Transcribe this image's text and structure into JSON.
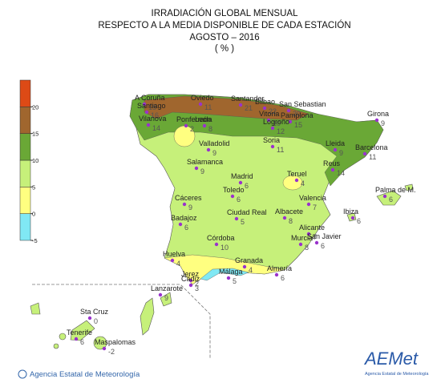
{
  "title": [
    "IRRADIACIÓN GLOBAL MENSUAL",
    "RESPECTO A LA MEDIA DISPONIBLE DE CADA ESTACIÓN",
    "AGOSTO – 2016",
    "( % )"
  ],
  "legend": {
    "lim": [
      -5,
      25
    ],
    "ticks": [
      -5,
      0,
      5,
      10,
      15,
      20
    ],
    "colors": [
      "#80e8f4",
      "#ffff80",
      "#c6f07a",
      "#6aa836",
      "#a0662e",
      "#dd4a16"
    ]
  },
  "stations": [
    {
      "name": "A Coruña",
      "value": 15
    },
    {
      "name": "Santiago",
      "value": 16
    },
    {
      "name": "Oviedo",
      "value": 11
    },
    {
      "name": "Santander",
      "value": 21
    },
    {
      "name": "Bilbao",
      "value": 22
    },
    {
      "name": "San Sebastian",
      "value": 20
    },
    {
      "name": "Vilanova",
      "value": 14
    },
    {
      "name": "Ponferrada",
      "value": 2
    },
    {
      "name": "León",
      "value": 8
    },
    {
      "name": "Vitoria",
      "value": 10
    },
    {
      "name": "Pamplona",
      "value": 15
    },
    {
      "name": "Logroño",
      "value": 12
    },
    {
      "name": "Valladolid",
      "value": 9
    },
    {
      "name": "Soria",
      "value": 11
    },
    {
      "name": "Lleida",
      "value": 9
    },
    {
      "name": "Girona",
      "value": 9
    },
    {
      "name": "Barcelona",
      "value": 11
    },
    {
      "name": "Reus",
      "value": 14
    },
    {
      "name": "Salamanca",
      "value": 9
    },
    {
      "name": "Madrid",
      "value": 6
    },
    {
      "name": "Teruel",
      "value": 4
    },
    {
      "name": "Toledo",
      "value": 6
    },
    {
      "name": "Valencia",
      "value": 7
    },
    {
      "name": "Palma de M.",
      "value": 6
    },
    {
      "name": "Cáceres",
      "value": 9
    },
    {
      "name": "Badajoz",
      "value": 6
    },
    {
      "name": "Ciudad Real",
      "value": 5
    },
    {
      "name": "Albacete",
      "value": 8
    },
    {
      "name": "Ibiza",
      "value": 6
    },
    {
      "name": "Alicante",
      "value": 7
    },
    {
      "name": "Murcia",
      "value": 8
    },
    {
      "name": "San Javier",
      "value": 6
    },
    {
      "name": "Córdoba",
      "value": 10
    },
    {
      "name": "Huelva",
      "value": 4
    },
    {
      "name": "Granada",
      "value": 4
    },
    {
      "name": "Almería",
      "value": 6
    },
    {
      "name": "Málaga",
      "value": 5
    },
    {
      "name": "Jerez",
      "value": 2
    },
    {
      "name": "Cádiz",
      "value": 3
    },
    {
      "name": "Lanzarote",
      "value": 9
    },
    {
      "name": "Sta Cruz",
      "value": 0
    },
    {
      "name": "Tenerife",
      "value": 6
    },
    {
      "name": "Maspalomas",
      "value": -2
    }
  ],
  "footer": "Agencia Estatal de Meteorología",
  "logo": {
    "text": "AEMet",
    "caption": "Agencia Estatal de Meteorología"
  }
}
